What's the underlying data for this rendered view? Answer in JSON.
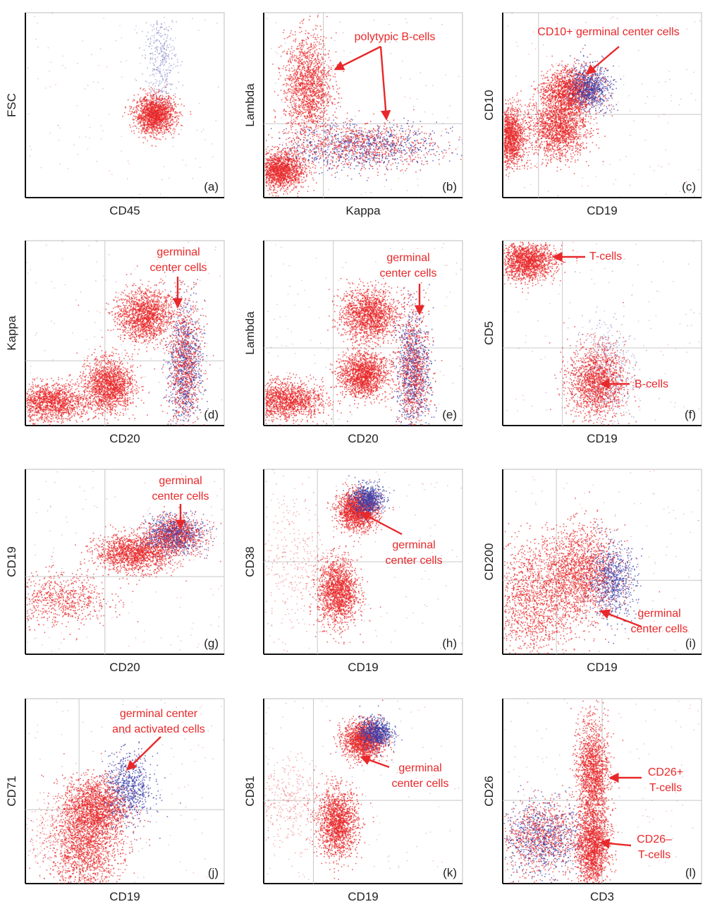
{
  "figure": {
    "colors": {
      "primary_events": "#e8282a",
      "secondary_events": "#3b3fa8",
      "gridlines": "#c8c8c8",
      "frame": "#111111"
    }
  },
  "chart_data": [
    {
      "type": "scatter",
      "panel": "(a)",
      "xlabel": "CD45",
      "ylabel": "FSC",
      "xlim": [
        0,
        1
      ],
      "ylim": [
        0,
        1
      ],
      "grid": false,
      "clusters": [
        {
          "color": "red",
          "center": [
            0.65,
            0.45
          ],
          "spread": [
            0.05,
            0.05
          ],
          "density": "high"
        },
        {
          "color": "blue",
          "center": [
            0.68,
            0.75
          ],
          "spread": [
            0.04,
            0.12
          ],
          "density": "low"
        }
      ],
      "annotations": []
    },
    {
      "type": "scatter",
      "panel": "(b)",
      "xlabel": "Kappa",
      "ylabel": "Lambda",
      "xlim": [
        0,
        1
      ],
      "ylim": [
        0,
        1
      ],
      "grid": true,
      "gridlines": {
        "x": 0.3,
        "y": 0.4
      },
      "clusters": [
        {
          "color": "red",
          "center": [
            0.08,
            0.15
          ],
          "spread": [
            0.06,
            0.05
          ],
          "density": "high"
        },
        {
          "color": "red",
          "center": [
            0.22,
            0.6
          ],
          "spread": [
            0.06,
            0.14
          ],
          "density": "high"
        },
        {
          "color": "mixed",
          "center": [
            0.5,
            0.28
          ],
          "spread": [
            0.18,
            0.06
          ],
          "density": "high"
        }
      ],
      "annotations": [
        {
          "text": "polytypic B-cells"
        }
      ]
    },
    {
      "type": "scatter",
      "panel": "(c)",
      "xlabel": "CD19",
      "ylabel": "CD10",
      "xlim": [
        0,
        1
      ],
      "ylim": [
        0,
        1
      ],
      "grid": true,
      "gridlines": {
        "x": 0.18,
        "y": 0.45
      },
      "clusters": [
        {
          "color": "red",
          "center": [
            0.03,
            0.33
          ],
          "spread": [
            0.04,
            0.08
          ],
          "density": "high"
        },
        {
          "color": "red",
          "center": [
            0.28,
            0.38
          ],
          "spread": [
            0.07,
            0.08
          ],
          "density": "high"
        },
        {
          "color": "red",
          "center": [
            0.34,
            0.58
          ],
          "spread": [
            0.07,
            0.06
          ],
          "density": "high"
        },
        {
          "color": "blue",
          "center": [
            0.44,
            0.6
          ],
          "spread": [
            0.05,
            0.06
          ],
          "density": "medium"
        }
      ],
      "annotations": [
        {
          "text": "CD10+ germinal center cells"
        }
      ]
    },
    {
      "type": "scatter",
      "panel": "(d)",
      "xlabel": "CD20",
      "ylabel": "Kappa",
      "xlim": [
        0,
        1
      ],
      "ylim": [
        0,
        1
      ],
      "grid": true,
      "gridlines": {
        "x": 0.4,
        "y": 0.35
      },
      "clusters": [
        {
          "color": "red",
          "center": [
            0.12,
            0.13
          ],
          "spread": [
            0.1,
            0.05
          ],
          "density": "high"
        },
        {
          "color": "red",
          "center": [
            0.42,
            0.22
          ],
          "spread": [
            0.06,
            0.07
          ],
          "density": "high"
        },
        {
          "color": "red",
          "center": [
            0.6,
            0.6
          ],
          "spread": [
            0.07,
            0.07
          ],
          "density": "high"
        },
        {
          "color": "mixed",
          "center": [
            0.8,
            0.32
          ],
          "spread": [
            0.04,
            0.18
          ],
          "density": "high"
        }
      ],
      "annotations": [
        {
          "text": "germinal center cells",
          "lines": [
            "germinal",
            "center cells"
          ]
        }
      ]
    },
    {
      "type": "scatter",
      "panel": "(e)",
      "xlabel": "CD20",
      "ylabel": "Lambda",
      "xlim": [
        0,
        1
      ],
      "ylim": [
        0,
        1
      ],
      "grid": true,
      "gridlines": {
        "x": 0.35,
        "y": 0.42
      },
      "clusters": [
        {
          "color": "red",
          "center": [
            0.1,
            0.14
          ],
          "spread": [
            0.1,
            0.05
          ],
          "density": "high"
        },
        {
          "color": "red",
          "center": [
            0.5,
            0.28
          ],
          "spread": [
            0.06,
            0.06
          ],
          "density": "high"
        },
        {
          "color": "red",
          "center": [
            0.53,
            0.6
          ],
          "spread": [
            0.07,
            0.07
          ],
          "density": "high"
        },
        {
          "color": "mixed",
          "center": [
            0.75,
            0.3
          ],
          "spread": [
            0.04,
            0.16
          ],
          "density": "high"
        }
      ],
      "annotations": [
        {
          "text": "germinal center cells",
          "lines": [
            "germinal",
            "center cells"
          ]
        }
      ]
    },
    {
      "type": "scatter",
      "panel": "(f)",
      "xlabel": "CD19",
      "ylabel": "CD5",
      "xlim": [
        0,
        1
      ],
      "ylim": [
        0,
        1
      ],
      "grid": true,
      "gridlines": {
        "x": 0.3,
        "y": 0.42
      },
      "clusters": [
        {
          "color": "red",
          "center": [
            0.12,
            0.89
          ],
          "spread": [
            0.07,
            0.05
          ],
          "density": "high"
        },
        {
          "color": "red",
          "center": [
            0.47,
            0.24
          ],
          "spread": [
            0.07,
            0.1
          ],
          "density": "high"
        },
        {
          "color": "blue",
          "center": [
            0.52,
            0.3
          ],
          "spread": [
            0.08,
            0.15
          ],
          "density": "low"
        }
      ],
      "annotations": [
        {
          "text": "T-cells"
        },
        {
          "text": "B-cells"
        }
      ]
    },
    {
      "type": "scatter",
      "panel": "(g)",
      "xlabel": "CD20",
      "ylabel": "CD19",
      "xlim": [
        0,
        1
      ],
      "ylim": [
        0,
        1
      ],
      "grid": true,
      "gridlines": {
        "x": 0.4,
        "y": 0.42
      },
      "clusters": [
        {
          "color": "red",
          "center": [
            0.18,
            0.3
          ],
          "spread": [
            0.12,
            0.07
          ],
          "density": "medium"
        },
        {
          "color": "red",
          "center": [
            0.55,
            0.55
          ],
          "spread": [
            0.1,
            0.05
          ],
          "density": "high"
        },
        {
          "color": "mixed",
          "center": [
            0.75,
            0.65
          ],
          "spread": [
            0.07,
            0.05
          ],
          "density": "high"
        }
      ],
      "annotations": [
        {
          "text": "germinal center cells",
          "lines": [
            "germinal",
            "center cells"
          ]
        }
      ]
    },
    {
      "type": "scatter",
      "panel": "(h)",
      "xlabel": "CD19",
      "ylabel": "CD38",
      "xlim": [
        0,
        1
      ],
      "ylim": [
        0,
        1
      ],
      "grid": true,
      "gridlines": {
        "x": 0.27,
        "y": 0.5
      },
      "clusters": [
        {
          "color": "red",
          "center": [
            0.15,
            0.5
          ],
          "spread": [
            0.1,
            0.2
          ],
          "density": "low"
        },
        {
          "color": "red",
          "center": [
            0.37,
            0.34
          ],
          "spread": [
            0.05,
            0.09
          ],
          "density": "high"
        },
        {
          "color": "red",
          "center": [
            0.47,
            0.78
          ],
          "spread": [
            0.05,
            0.05
          ],
          "density": "high"
        },
        {
          "color": "blue",
          "center": [
            0.52,
            0.84
          ],
          "spread": [
            0.04,
            0.04
          ],
          "density": "medium"
        }
      ],
      "annotations": [
        {
          "text": "germinal center cells",
          "lines": [
            "germinal",
            "center cells"
          ]
        }
      ]
    },
    {
      "type": "scatter",
      "panel": "(i)",
      "xlabel": "CD19",
      "ylabel": "CD200",
      "xlim": [
        0,
        1
      ],
      "ylim": [
        0,
        1
      ],
      "grid": true,
      "gridlines": {
        "x": 0.27,
        "y": 0.4
      },
      "clusters": [
        {
          "color": "red",
          "center": [
            0.15,
            0.3
          ],
          "spread": [
            0.12,
            0.16
          ],
          "density": "high"
        },
        {
          "color": "red",
          "center": [
            0.4,
            0.45
          ],
          "spread": [
            0.09,
            0.12
          ],
          "density": "high"
        },
        {
          "color": "blue",
          "center": [
            0.55,
            0.4
          ],
          "spread": [
            0.06,
            0.1
          ],
          "density": "medium"
        }
      ],
      "annotations": [
        {
          "text": "germinal center cells",
          "lines": [
            "germinal",
            "center cells"
          ]
        }
      ]
    },
    {
      "type": "scatter",
      "panel": "(j)",
      "xlabel": "CD19",
      "ylabel": "CD71",
      "xlim": [
        0,
        1
      ],
      "ylim": [
        0,
        1
      ],
      "grid": true,
      "gridlines": {
        "x": 0.27,
        "y": 0.4
      },
      "clusters": [
        {
          "color": "red",
          "center": [
            0.3,
            0.2
          ],
          "spread": [
            0.09,
            0.12
          ],
          "density": "high"
        },
        {
          "color": "red",
          "center": [
            0.35,
            0.42
          ],
          "spread": [
            0.08,
            0.08
          ],
          "density": "high"
        },
        {
          "color": "blue",
          "center": [
            0.52,
            0.52
          ],
          "spread": [
            0.06,
            0.09
          ],
          "density": "medium"
        },
        {
          "color": "red",
          "center": [
            0.2,
            0.25
          ],
          "spread": [
            0.12,
            0.12
          ],
          "density": "low"
        }
      ],
      "annotations": [
        {
          "text": "germinal center and activated cells",
          "lines": [
            "germinal center",
            "and activated cells"
          ]
        }
      ]
    },
    {
      "type": "scatter",
      "panel": "(k)",
      "xlabel": "CD19",
      "ylabel": "CD81",
      "xlim": [
        0,
        1
      ],
      "ylim": [
        0,
        1
      ],
      "grid": true,
      "gridlines": {
        "x": 0.25,
        "y": 0.45
      },
      "clusters": [
        {
          "color": "red",
          "center": [
            0.12,
            0.45
          ],
          "spread": [
            0.09,
            0.12
          ],
          "density": "low"
        },
        {
          "color": "red",
          "center": [
            0.37,
            0.33
          ],
          "spread": [
            0.05,
            0.09
          ],
          "density": "high"
        },
        {
          "color": "red",
          "center": [
            0.5,
            0.78
          ],
          "spread": [
            0.05,
            0.05
          ],
          "density": "high"
        },
        {
          "color": "blue",
          "center": [
            0.56,
            0.82
          ],
          "spread": [
            0.04,
            0.04
          ],
          "density": "medium"
        }
      ],
      "annotations": [
        {
          "text": "germinal center cells",
          "lines": [
            "germinal",
            "center cells"
          ]
        }
      ]
    },
    {
      "type": "scatter",
      "panel": "(l)",
      "xlabel": "CD3",
      "ylabel": "CD26",
      "xlim": [
        0,
        1
      ],
      "ylim": [
        0,
        1
      ],
      "grid": true,
      "gridlines": {
        "x": 0.5,
        "y": 0.45
      },
      "clusters": [
        {
          "color": "mixed",
          "center": [
            0.2,
            0.25
          ],
          "spread": [
            0.1,
            0.1
          ],
          "density": "high"
        },
        {
          "color": "red",
          "center": [
            0.45,
            0.6
          ],
          "spread": [
            0.04,
            0.14
          ],
          "density": "high"
        },
        {
          "color": "red",
          "center": [
            0.45,
            0.2
          ],
          "spread": [
            0.04,
            0.1
          ],
          "density": "high"
        }
      ],
      "annotations": [
        {
          "text": "CD26+ T-cells",
          "lines": [
            "CD26+",
            "T-cells"
          ]
        },
        {
          "text": "CD26– T-cells",
          "lines": [
            "CD26–",
            "T-cells"
          ]
        }
      ]
    }
  ]
}
